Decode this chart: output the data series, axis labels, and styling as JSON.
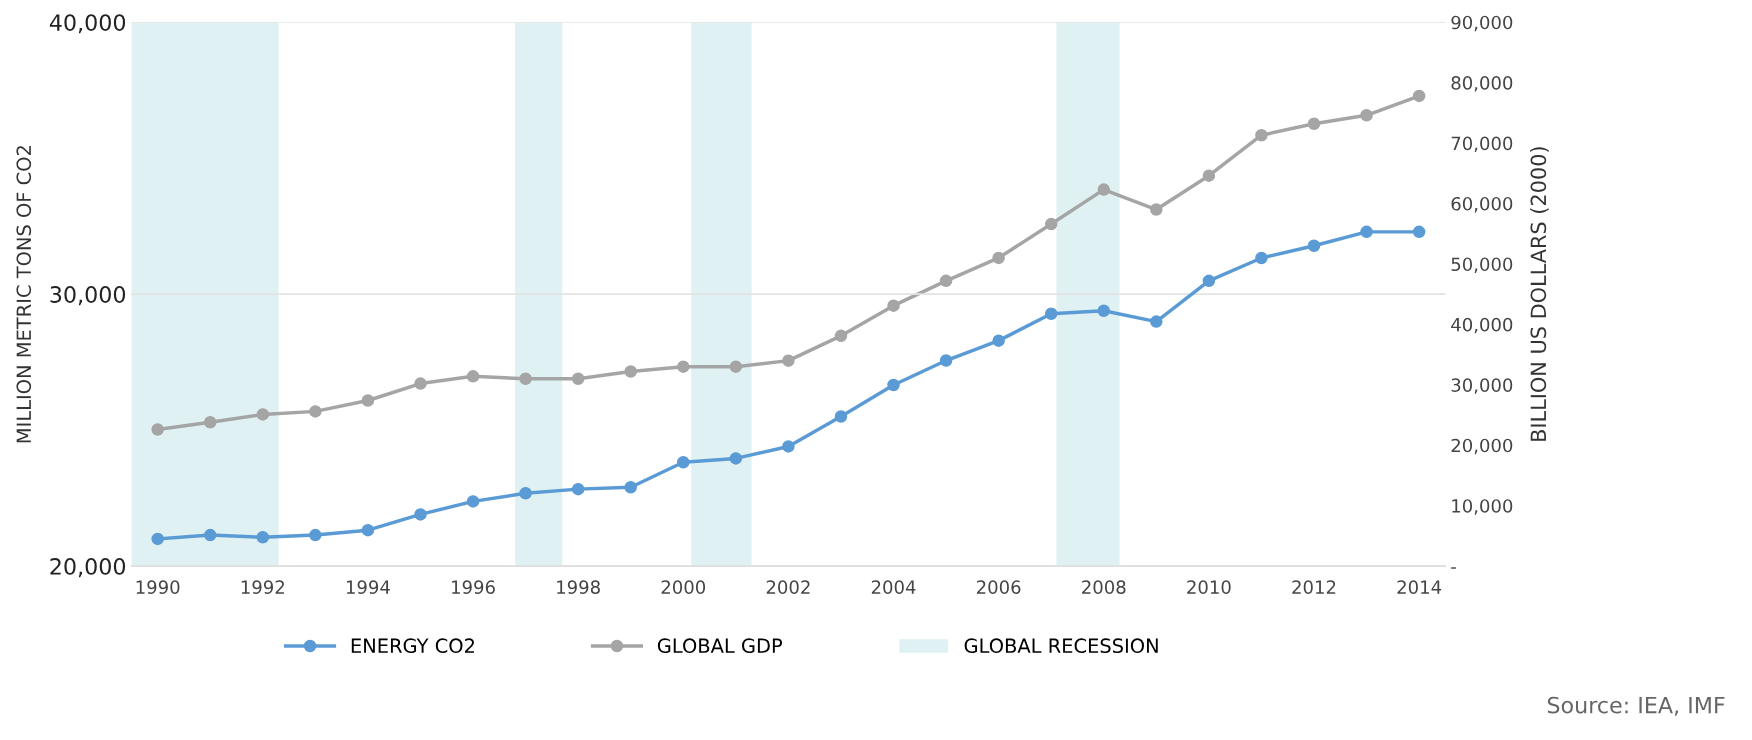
{
  "chart_data": {
    "type": "line",
    "ylabel": "MILLION METRIC TONS OF CO2",
    "y2label": "BILLION US DOLLARS (2000)",
    "x": [
      1990,
      1991,
      1992,
      1993,
      1994,
      1995,
      1996,
      1997,
      1998,
      1999,
      2000,
      2001,
      2002,
      2003,
      2004,
      2005,
      2006,
      2007,
      2008,
      2009,
      2010,
      2011,
      2012,
      2013,
      2014
    ],
    "xlim": [
      1989.5,
      2014.5
    ],
    "xticks": [
      1990,
      1992,
      1994,
      1996,
      1998,
      2000,
      2002,
      2004,
      2006,
      2008,
      2010,
      2012,
      2014
    ],
    "ylim": [
      20000,
      40000
    ],
    "yticks": [
      {
        "value": 20000,
        "label": "20,000"
      },
      {
        "value": 30000,
        "label": "30,000"
      },
      {
        "value": 40000,
        "label": "40,000"
      }
    ],
    "y2lim": [
      0,
      90000
    ],
    "y2ticks": [
      {
        "value": 0,
        "label": "-"
      },
      {
        "value": 10000,
        "label": "10,000"
      },
      {
        "value": 20000,
        "label": "20,000"
      },
      {
        "value": 30000,
        "label": "30,000"
      },
      {
        "value": 40000,
        "label": "40,000"
      },
      {
        "value": 50000,
        "label": "50,000"
      },
      {
        "value": 60000,
        "label": "60,000"
      },
      {
        "value": 70000,
        "label": "70,000"
      },
      {
        "value": 80000,
        "label": "80,000"
      },
      {
        "value": 90000,
        "label": "90,000"
      }
    ],
    "series": [
      {
        "name": "ENERGY CO2",
        "color": "#5b9bd5",
        "values": [
          21000,
          21140,
          21060,
          21140,
          21320,
          21900,
          22380,
          22680,
          22830,
          22900,
          23820,
          23960,
          24400,
          25500,
          26660,
          27560,
          28290,
          29280,
          29390,
          28990,
          30490,
          31330,
          31780,
          32290,
          32290
        ]
      },
      {
        "name": "GLOBAL GDP",
        "color": "#a5a5a5",
        "axis": "y2",
        "values": [
          22600,
          23800,
          25100,
          25600,
          27400,
          30200,
          31400,
          31000,
          31000,
          32200,
          33000,
          33000,
          34000,
          38100,
          43100,
          47200,
          51000,
          56600,
          62300,
          59000,
          64600,
          71300,
          73200,
          74600,
          77800
        ]
      }
    ],
    "bands": [
      {
        "axis": "x",
        "from": 1989.5,
        "to": 1992.3,
        "label": "GLOBAL RECESSION",
        "color": "#dff1f3"
      },
      {
        "axis": "x",
        "from": 1996.8,
        "to": 1997.7,
        "color": "#dff1f3"
      },
      {
        "axis": "x",
        "from": 2000.15,
        "to": 2001.3,
        "color": "#dff1f3"
      },
      {
        "axis": "x",
        "from": 2007.1,
        "to": 2008.3,
        "color": "#dff1f3"
      }
    ],
    "annotations": [
      "Source: IEA, IMF"
    ],
    "grid": "y",
    "legend": "bottom",
    "marker": "circle",
    "line_style": "solid"
  }
}
